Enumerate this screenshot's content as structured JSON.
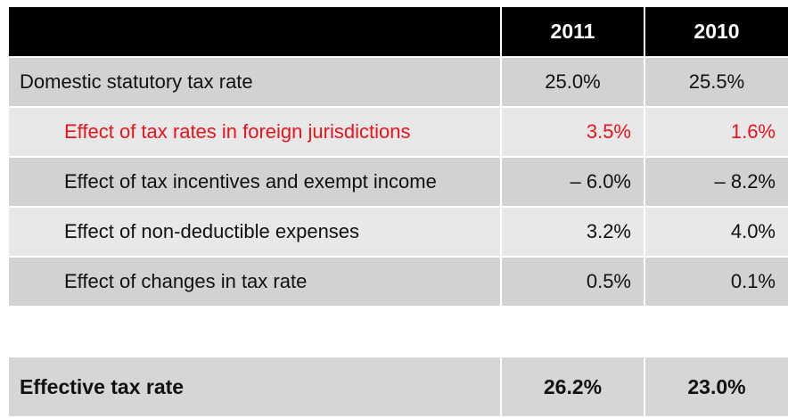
{
  "header": {
    "label": "",
    "year1": "2011",
    "year2": "2010"
  },
  "rows": [
    {
      "label": "Domestic statutory tax rate",
      "y2011": "25.0%",
      "y2010": "25.5%"
    },
    {
      "label": "Effect of tax rates in foreign jurisdictions",
      "y2011": "3.5%",
      "y2010": "1.6%"
    },
    {
      "label": "Effect of tax incentives and exempt income",
      "y2011": "– 6.0%",
      "y2010": "– 8.2%"
    },
    {
      "label": "Effect of non-deductible expenses",
      "y2011": "3.2%",
      "y2010": "4.0%"
    },
    {
      "label": "Effect of changes in tax rate",
      "y2011": "0.5%",
      "y2010": "0.1%"
    }
  ],
  "total": {
    "label": "Effective tax rate",
    "y2011": "26.2%",
    "y2010": "23.0%"
  },
  "colors": {
    "header_bg": "#000000",
    "highlight_text": "#e8131b",
    "row_dark": "#d2d2d2",
    "row_light": "#e8e8e8"
  }
}
